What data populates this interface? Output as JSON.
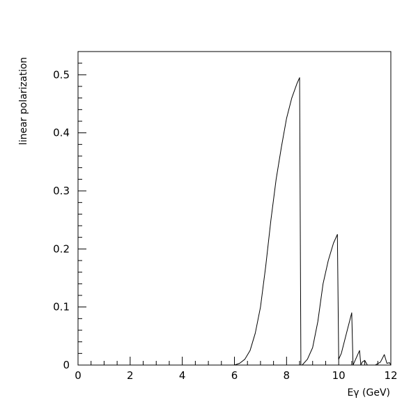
{
  "chart_data": {
    "type": "line",
    "title": "",
    "xlabel": "Eγ (GeV)",
    "ylabel": "linear polarization",
    "xlim": [
      0,
      12
    ],
    "ylim": [
      0,
      0.54
    ],
    "x_ticks": [
      0,
      2,
      4,
      6,
      8,
      10,
      12
    ],
    "y_ticks": [
      0,
      0.1,
      0.2,
      0.3,
      0.4,
      0.5
    ],
    "x_tick_labels": [
      "0",
      "2",
      "4",
      "6",
      "8",
      "10",
      "12"
    ],
    "y_tick_labels": [
      "0",
      "0.1",
      "0.2",
      "0.3",
      "0.4",
      "0.5"
    ],
    "grid": false,
    "legend": "none",
    "line_color": "#000000",
    "series": [
      {
        "x": [
          5.8,
          6.0,
          6.2,
          6.4,
          6.6,
          6.8,
          7.0,
          7.2,
          7.4,
          7.6,
          7.8,
          8.0,
          8.2,
          8.4,
          8.5,
          8.55,
          8.6,
          8.8,
          9.0,
          9.2,
          9.4,
          9.6,
          9.8,
          9.95,
          10.0,
          10.1,
          10.3,
          10.5,
          10.55,
          10.6,
          10.8,
          10.85,
          10.9,
          11.0,
          11.1,
          11.2,
          11.4,
          11.6,
          11.75,
          11.85,
          11.95,
          12.0
        ],
        "y": [
          0.0,
          0.0,
          0.003,
          0.01,
          0.025,
          0.055,
          0.1,
          0.17,
          0.25,
          0.32,
          0.375,
          0.425,
          0.46,
          0.485,
          0.495,
          0.0,
          0.0,
          0.01,
          0.03,
          0.075,
          0.14,
          0.18,
          0.21,
          0.225,
          0.01,
          0.02,
          0.055,
          0.09,
          0.0,
          0.005,
          0.025,
          0.0,
          0.005,
          0.008,
          0.0,
          0.0,
          0.0,
          0.005,
          0.018,
          0.003,
          0.004,
          0.0
        ]
      }
    ]
  }
}
